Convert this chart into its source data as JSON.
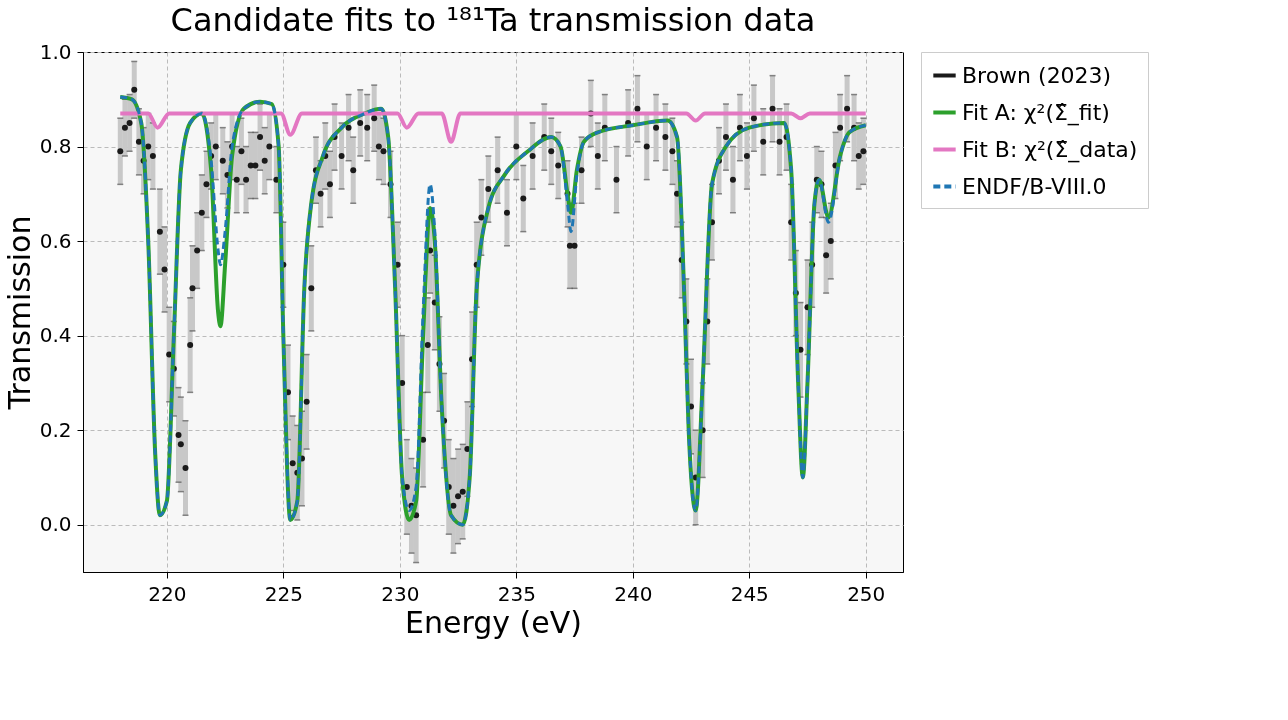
{
  "chart_data": {
    "type": "line",
    "title": "Candidate fits to ¹⁸¹Ta transmission data",
    "xlabel": "Energy (eV)",
    "ylabel": "Transmission",
    "xlim": [
      216.4,
      251.6
    ],
    "ylim": [
      -0.1,
      1.0
    ],
    "xticks": [
      220,
      225,
      230,
      235,
      240,
      245,
      250
    ],
    "yticks": [
      {
        "value": 0,
        "label": "0.0"
      },
      {
        "value": 0.2,
        "label": "0.2"
      },
      {
        "value": 0.4,
        "label": "0.4"
      },
      {
        "value": 0.6,
        "label": "0.6"
      },
      {
        "value": 0.8,
        "label": "0.8"
      },
      {
        "value": 1,
        "label": "1.0"
      }
    ],
    "grid": true,
    "legend": "right",
    "series": [
      {
        "name": "Brown (2023)",
        "type": "scatter",
        "marker": "circle",
        "color": "#1a1a1a",
        "x": [
          218.0,
          218.2,
          218.4,
          218.6,
          218.8,
          219.0,
          219.2,
          219.4,
          219.7,
          219.9,
          220.1,
          220.3,
          220.5,
          220.6,
          220.8,
          221.0,
          221.1,
          221.3,
          221.5,
          221.7,
          221.9,
          222.1,
          222.4,
          222.6,
          222.8,
          223.0,
          223.2,
          223.4,
          223.6,
          223.8,
          224.0,
          224.2,
          224.4,
          224.7,
          225.0,
          225.2,
          225.4,
          225.6,
          225.8,
          226.0,
          226.2,
          226.4,
          226.6,
          226.8,
          227.0,
          227.2,
          227.5,
          227.8,
          228.0,
          228.3,
          228.6,
          228.9,
          229.1,
          229.3,
          229.6,
          229.9,
          230.1,
          230.3,
          230.5,
          230.7,
          231.0,
          231.2,
          231.3,
          231.5,
          231.7,
          231.9,
          232.1,
          232.3,
          232.5,
          232.7,
          232.9,
          233.1,
          233.3,
          233.5,
          233.8,
          234.2,
          234.6,
          235.0,
          235.3,
          235.7,
          236.2,
          236.5,
          236.8,
          237.2,
          237.3,
          237.5,
          237.8,
          238.2,
          238.5,
          238.8,
          239.3,
          239.8,
          240.2,
          240.6,
          241.0,
          241.4,
          241.7,
          241.9,
          242.1,
          242.3,
          242.5,
          242.7,
          243.0,
          243.2,
          243.4,
          243.7,
          244.0,
          244.3,
          244.6,
          244.9,
          245.2,
          245.6,
          246.0,
          246.3,
          246.6,
          246.8,
          247.0,
          247.2,
          247.5,
          247.7,
          247.9,
          248.1,
          248.3,
          248.5,
          248.7,
          248.9,
          249.2,
          249.5,
          249.7,
          249.9
        ],
        "values": [
          0.79,
          0.84,
          0.85,
          0.92,
          0.81,
          0.77,
          0.8,
          0.78,
          0.62,
          0.54,
          0.36,
          0.33,
          0.19,
          0.17,
          0.12,
          0.38,
          0.5,
          0.58,
          0.66,
          0.72,
          0.78,
          0.8,
          0.77,
          0.74,
          0.8,
          0.73,
          0.79,
          0.73,
          0.76,
          0.76,
          0.82,
          0.77,
          0.8,
          0.73,
          0.55,
          0.28,
          0.13,
          0.11,
          0.14,
          0.26,
          0.5,
          0.75,
          0.7,
          0.78,
          0.72,
          0.82,
          0.78,
          0.84,
          0.75,
          0.85,
          0.84,
          0.86,
          0.8,
          0.79,
          0.72,
          0.55,
          0.3,
          0.08,
          0.04,
          0.02,
          0.18,
          0.38,
          0.58,
          0.47,
          0.34,
          0.22,
          0.08,
          0.04,
          0.06,
          0.07,
          0.16,
          0.35,
          0.55,
          0.65,
          0.71,
          0.75,
          0.66,
          0.8,
          0.69,
          0.78,
          0.82,
          0.79,
          0.76,
          0.7,
          0.59,
          0.59,
          0.75,
          0.87,
          0.78,
          0.84,
          0.73,
          0.85,
          0.88,
          0.8,
          0.84,
          0.82,
          0.79,
          0.7,
          0.56,
          0.43,
          0.25,
          0.1,
          0.2,
          0.43,
          0.64,
          0.77,
          0.82,
          0.73,
          0.84,
          0.78,
          0.86,
          0.81,
          0.88,
          0.81,
          0.82,
          0.64,
          0.49,
          0.37,
          0.46,
          0.55,
          0.73,
          0.72,
          0.57,
          0.6,
          0.76,
          0.84,
          0.88,
          0.84,
          0.78,
          0.79
        ],
        "errors": [
          0.07,
          0.06,
          0.06,
          0.06,
          0.07,
          0.07,
          0.07,
          0.07,
          0.09,
          0.09,
          0.1,
          0.1,
          0.1,
          0.1,
          0.1,
          0.1,
          0.09,
          0.08,
          0.08,
          0.07,
          0.07,
          0.07,
          0.07,
          0.07,
          0.07,
          0.07,
          0.07,
          0.07,
          0.07,
          0.07,
          0.07,
          0.07,
          0.07,
          0.07,
          0.09,
          0.1,
          0.1,
          0.1,
          0.1,
          0.1,
          0.09,
          0.07,
          0.07,
          0.07,
          0.07,
          0.07,
          0.07,
          0.07,
          0.07,
          0.07,
          0.07,
          0.07,
          0.07,
          0.07,
          0.07,
          0.09,
          0.1,
          0.1,
          0.1,
          0.1,
          0.1,
          0.1,
          0.09,
          0.1,
          0.1,
          0.1,
          0.1,
          0.1,
          0.1,
          0.1,
          0.1,
          0.1,
          0.09,
          0.08,
          0.07,
          0.07,
          0.07,
          0.07,
          0.07,
          0.07,
          0.07,
          0.07,
          0.07,
          0.07,
          0.09,
          0.09,
          0.07,
          0.07,
          0.07,
          0.07,
          0.07,
          0.07,
          0.07,
          0.07,
          0.07,
          0.07,
          0.07,
          0.07,
          0.08,
          0.09,
          0.1,
          0.1,
          0.1,
          0.09,
          0.08,
          0.07,
          0.07,
          0.07,
          0.07,
          0.07,
          0.07,
          0.07,
          0.07,
          0.07,
          0.07,
          0.08,
          0.09,
          0.1,
          0.1,
          0.09,
          0.07,
          0.07,
          0.08,
          0.08,
          0.07,
          0.07,
          0.07,
          0.07,
          0.07,
          0.07
        ]
      },
      {
        "name": "Fit A: χ²(Σ̂_fit)",
        "type": "line",
        "line_style": "solid",
        "color": "#2ca02c",
        "x": [
          218.0,
          218.5,
          218.9,
          219.2,
          219.5,
          219.7,
          220.0,
          220.3,
          220.6,
          221.0,
          221.5,
          221.9,
          222.2,
          222.3,
          222.5,
          222.8,
          223.3,
          224.0,
          224.5,
          224.8,
          225.0,
          225.3,
          225.6,
          225.9,
          226.2,
          226.7,
          227.5,
          228.5,
          229.2,
          229.5,
          229.8,
          230.1,
          230.4,
          230.7,
          231.0,
          231.3,
          231.5,
          231.8,
          232.2,
          232.7,
          233.0,
          233.3,
          233.8,
          234.5,
          235.5,
          236.5,
          236.9,
          237.2,
          237.35,
          237.6,
          237.9,
          238.5,
          240.0,
          241.5,
          241.9,
          242.2,
          242.4,
          242.7,
          243.0,
          243.4,
          244.0,
          245.0,
          246.5,
          246.8,
          247.1,
          247.3,
          247.5,
          247.8,
          248.0,
          248.4,
          248.9,
          249.3,
          250.0
        ],
        "values": [
          0.905,
          0.9,
          0.85,
          0.6,
          0.15,
          0.02,
          0.05,
          0.4,
          0.75,
          0.85,
          0.87,
          0.75,
          0.45,
          0.42,
          0.55,
          0.78,
          0.88,
          0.895,
          0.89,
          0.8,
          0.4,
          0.01,
          0.05,
          0.5,
          0.68,
          0.78,
          0.84,
          0.87,
          0.88,
          0.82,
          0.5,
          0.1,
          0.01,
          0.05,
          0.4,
          0.67,
          0.6,
          0.25,
          0.02,
          0.0,
          0.1,
          0.5,
          0.67,
          0.74,
          0.79,
          0.82,
          0.8,
          0.7,
          0.66,
          0.75,
          0.81,
          0.83,
          0.845,
          0.855,
          0.82,
          0.5,
          0.2,
          0.03,
          0.3,
          0.72,
          0.8,
          0.84,
          0.85,
          0.75,
          0.3,
          0.1,
          0.3,
          0.68,
          0.73,
          0.65,
          0.78,
          0.83,
          0.845
        ]
      },
      {
        "name": "Fit B: χ²(Σ̂_data)",
        "type": "line",
        "line_style": "solid",
        "color": "#e377c2",
        "x": [
          218.0,
          219.2,
          219.6,
          220.1,
          224.9,
          225.3,
          225.8,
          229.9,
          230.3,
          230.8,
          231.8,
          232.2,
          232.6,
          242.3,
          242.7,
          243.1,
          246.8,
          247.2,
          247.6,
          250.0
        ],
        "values": [
          0.87,
          0.87,
          0.84,
          0.87,
          0.87,
          0.825,
          0.87,
          0.87,
          0.84,
          0.87,
          0.87,
          0.81,
          0.87,
          0.87,
          0.855,
          0.87,
          0.87,
          0.86,
          0.87,
          0.87
        ]
      },
      {
        "name": "ENDF/B-VIII.0",
        "type": "line",
        "line_style": "dashed",
        "color": "#1f77b4",
        "x": [
          218.0,
          218.5,
          218.9,
          219.2,
          219.5,
          219.7,
          220.0,
          220.3,
          220.6,
          221.0,
          221.5,
          221.9,
          222.2,
          222.3,
          222.5,
          222.8,
          223.3,
          224.0,
          224.5,
          224.8,
          225.0,
          225.3,
          225.6,
          225.9,
          226.2,
          226.7,
          227.5,
          228.5,
          229.2,
          229.5,
          229.8,
          230.1,
          230.4,
          230.7,
          231.0,
          231.3,
          231.5,
          231.8,
          232.2,
          232.7,
          233.0,
          233.3,
          233.8,
          234.5,
          235.5,
          236.5,
          236.9,
          237.2,
          237.35,
          237.6,
          237.9,
          238.5,
          240.0,
          241.5,
          241.9,
          242.2,
          242.4,
          242.7,
          243.0,
          243.4,
          244.0,
          245.0,
          246.5,
          246.8,
          247.1,
          247.3,
          247.5,
          247.8,
          248.0,
          248.4,
          248.9,
          249.3,
          250.0
        ],
        "values": [
          0.905,
          0.9,
          0.85,
          0.6,
          0.15,
          0.02,
          0.05,
          0.4,
          0.75,
          0.85,
          0.87,
          0.77,
          0.58,
          0.55,
          0.62,
          0.8,
          0.88,
          0.895,
          0.89,
          0.8,
          0.4,
          0.01,
          0.05,
          0.5,
          0.68,
          0.78,
          0.84,
          0.87,
          0.88,
          0.82,
          0.5,
          0.1,
          0.03,
          0.08,
          0.45,
          0.72,
          0.62,
          0.25,
          0.02,
          0.0,
          0.1,
          0.5,
          0.67,
          0.74,
          0.79,
          0.82,
          0.8,
          0.68,
          0.62,
          0.74,
          0.81,
          0.83,
          0.845,
          0.855,
          0.82,
          0.5,
          0.2,
          0.03,
          0.3,
          0.72,
          0.8,
          0.84,
          0.85,
          0.75,
          0.3,
          0.1,
          0.3,
          0.68,
          0.73,
          0.64,
          0.78,
          0.83,
          0.845
        ]
      }
    ]
  }
}
